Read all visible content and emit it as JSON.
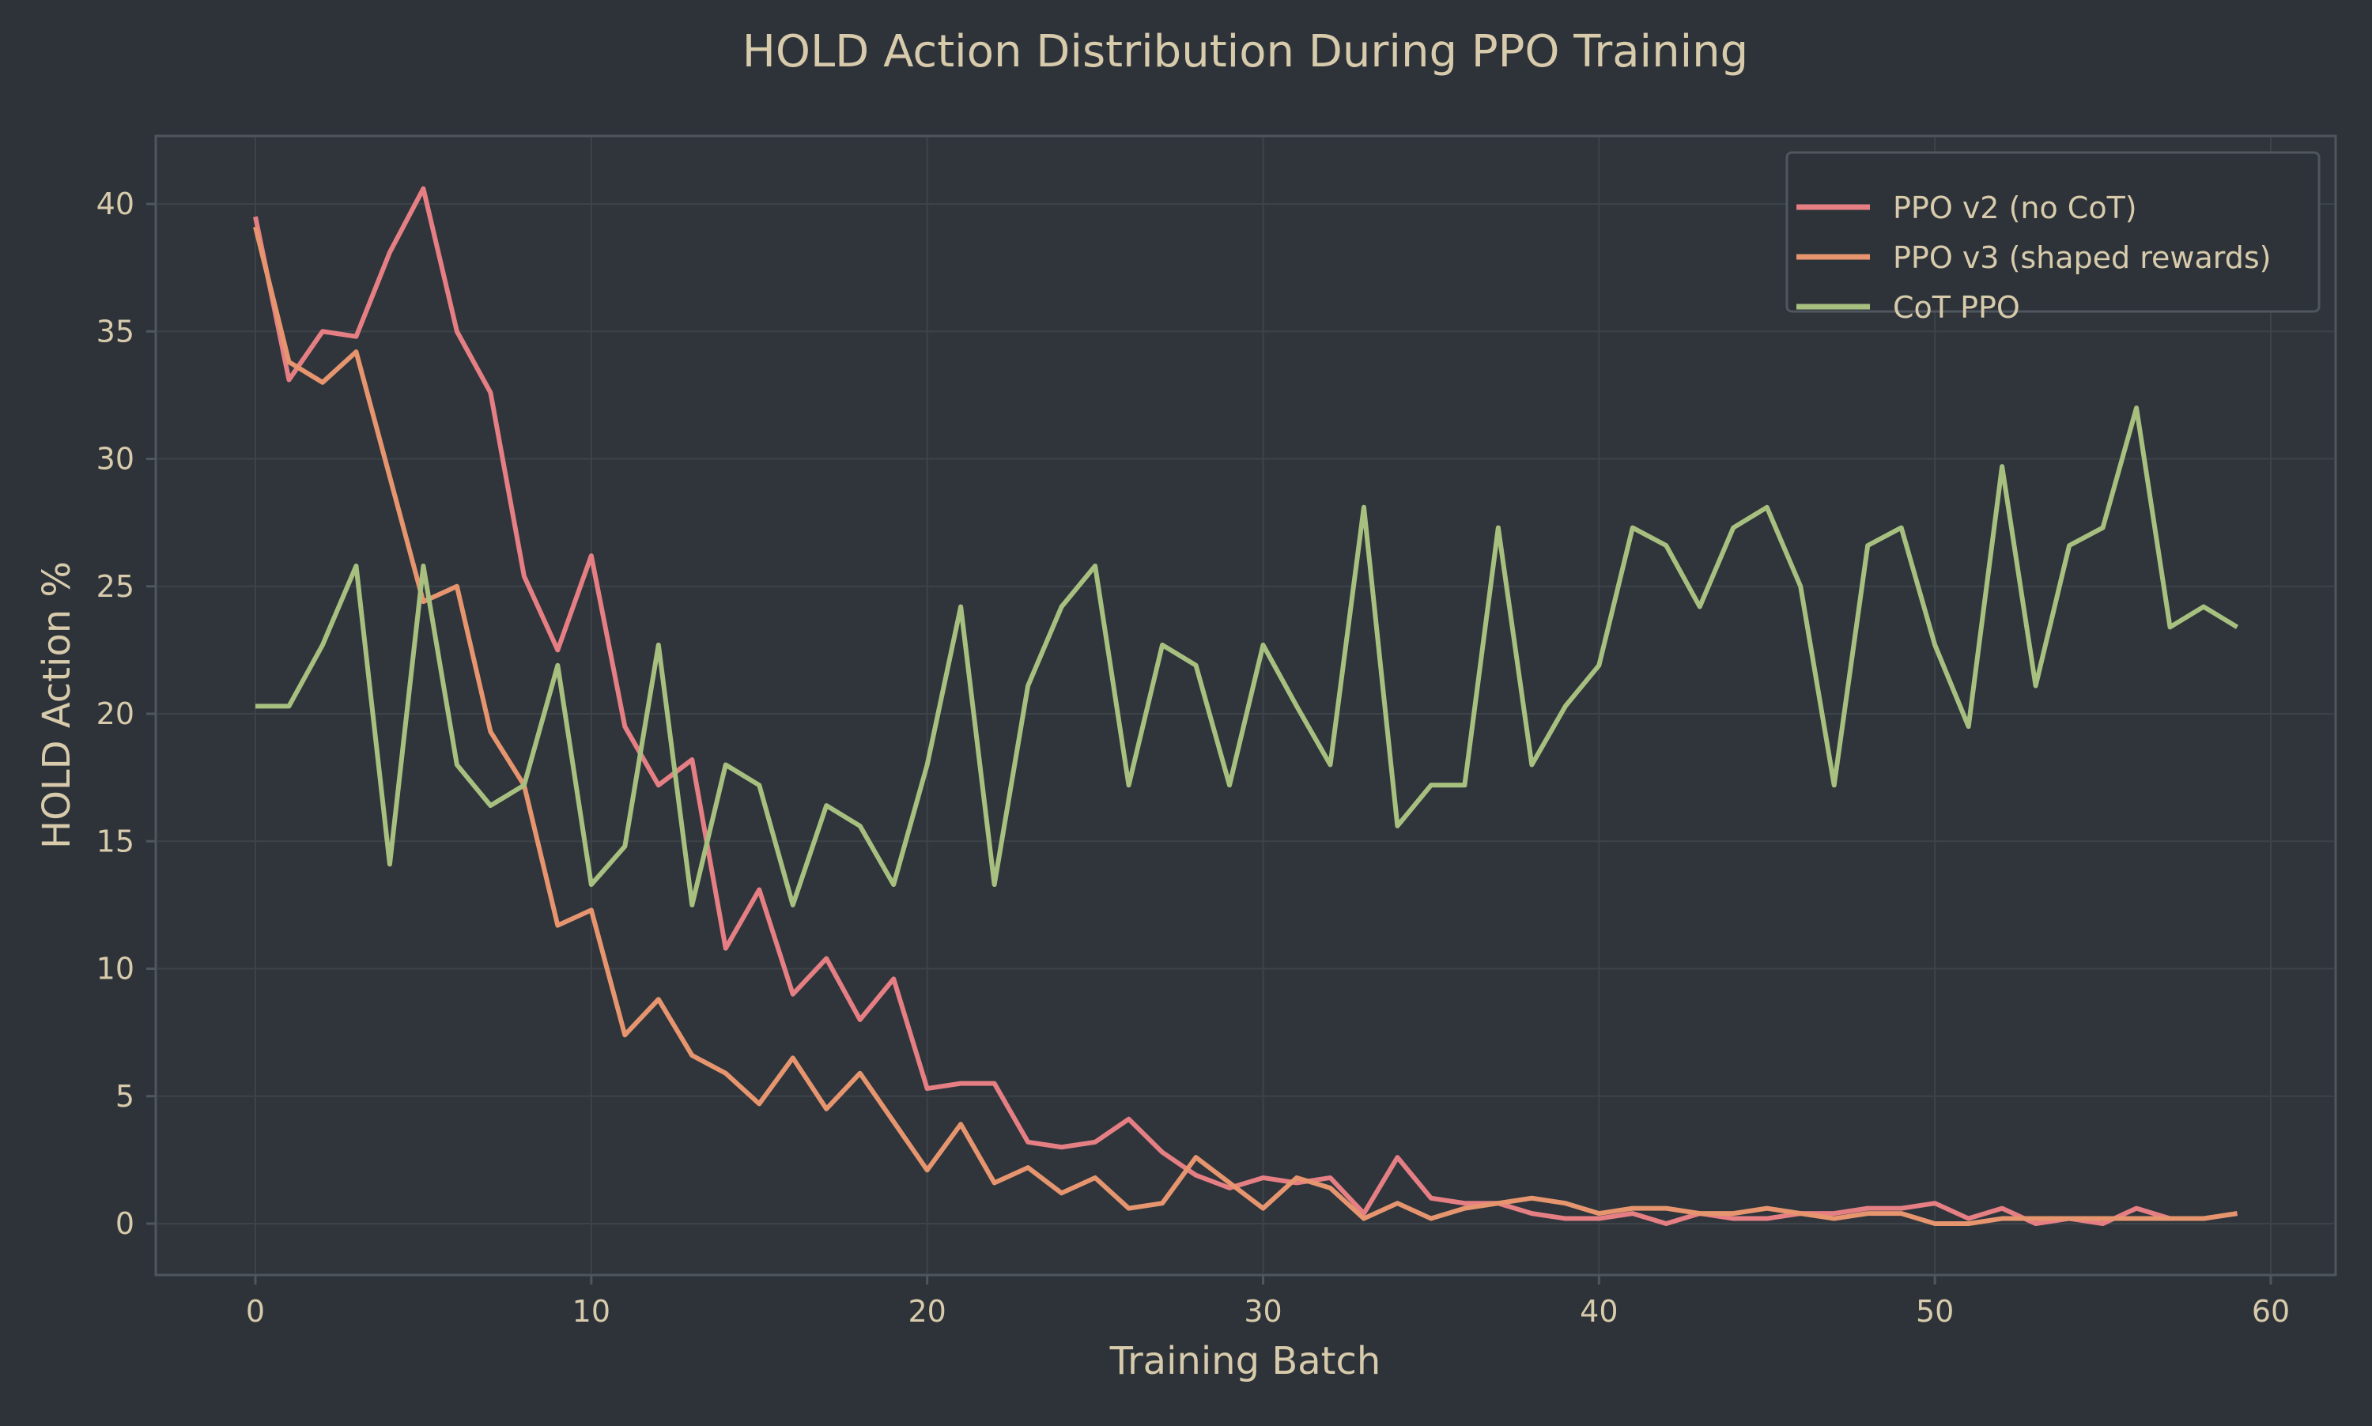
{
  "chart_data": {
    "type": "line",
    "title": "HOLD Action Distribution During PPO Training",
    "xlabel": "Training Batch",
    "ylabel": "HOLD Action %",
    "xlim": [
      -3,
      62
    ],
    "ylim": [
      -2,
      42.5
    ],
    "xticks": [
      0,
      10,
      20,
      30,
      40,
      50,
      60
    ],
    "yticks": [
      0,
      5,
      10,
      15,
      20,
      25,
      30,
      35,
      40
    ],
    "grid": true,
    "legend_placement": "top-right",
    "background": "#2d3339",
    "series": [
      {
        "name": "PPO v2 (no CoT)",
        "color": "#e57f84",
        "values": [
          39.5,
          33.1,
          35.0,
          34.8,
          38.1,
          40.6,
          35.0,
          32.6,
          25.4,
          22.5,
          26.2,
          19.5,
          17.2,
          18.2,
          10.8,
          13.1,
          9.0,
          10.4,
          8.0,
          9.6,
          5.3,
          5.5,
          5.5,
          3.2,
          3.0,
          3.2,
          4.1,
          2.8,
          1.9,
          1.4,
          1.8,
          1.6,
          1.8,
          0.4,
          2.6,
          1.0,
          0.8,
          0.8,
          0.4,
          0.2,
          0.2,
          0.4,
          0.0,
          0.4,
          0.2,
          0.2,
          0.4,
          0.4,
          0.6,
          0.6,
          0.8,
          0.2,
          0.6,
          0.0,
          0.2,
          0.0,
          0.6,
          0.2,
          0.2,
          0.4
        ]
      },
      {
        "name": "PPO v3 (shaped rewards)",
        "color": "#e6956f",
        "values": [
          39.1,
          33.8,
          33.0,
          34.2,
          29.3,
          24.4,
          25.0,
          19.3,
          17.2,
          11.7,
          12.3,
          7.4,
          8.8,
          6.6,
          5.9,
          4.7,
          6.5,
          4.5,
          5.9,
          4.0,
          2.1,
          3.9,
          1.6,
          2.2,
          1.2,
          1.8,
          0.6,
          0.8,
          2.6,
          1.6,
          0.6,
          1.8,
          1.4,
          0.2,
          0.8,
          0.2,
          0.6,
          0.8,
          1.0,
          0.8,
          0.4,
          0.6,
          0.6,
          0.4,
          0.4,
          0.6,
          0.4,
          0.2,
          0.4,
          0.4,
          0.0,
          0.0,
          0.2,
          0.2,
          0.2,
          0.2,
          0.2,
          0.2,
          0.2,
          0.4
        ]
      },
      {
        "name": "CoT PPO",
        "color": "#a8c07f",
        "values": [
          20.3,
          20.3,
          22.7,
          25.8,
          14.1,
          25.8,
          18.0,
          16.4,
          17.2,
          21.9,
          13.3,
          14.8,
          22.7,
          12.5,
          18.0,
          17.2,
          12.5,
          16.4,
          15.6,
          13.3,
          18.0,
          24.2,
          13.3,
          21.1,
          24.2,
          25.8,
          17.2,
          22.7,
          21.9,
          17.2,
          22.7,
          20.3,
          18.0,
          28.1,
          15.6,
          17.2,
          17.2,
          27.3,
          18.0,
          20.3,
          21.9,
          27.3,
          26.6,
          24.2,
          27.3,
          28.1,
          25.0,
          17.2,
          26.6,
          27.3,
          22.7,
          19.5,
          29.7,
          21.1,
          26.6,
          27.3,
          32.0,
          23.4,
          24.2,
          23.4
        ]
      }
    ]
  }
}
